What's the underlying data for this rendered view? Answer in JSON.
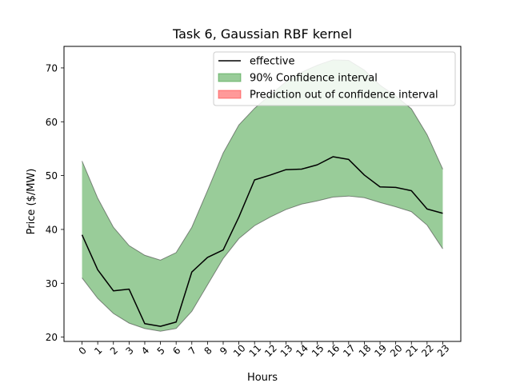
{
  "chart_data": {
    "type": "line",
    "title": "Task 6, Gaussian RBF kernel",
    "xlabel": "Hours",
    "ylabel": "Price ($/MW)",
    "x": [
      0,
      1,
      2,
      3,
      4,
      5,
      6,
      7,
      8,
      9,
      10,
      11,
      12,
      13,
      14,
      15,
      16,
      17,
      18,
      19,
      20,
      21,
      22,
      23
    ],
    "xlim": [
      -1.15,
      24.15
    ],
    "ylim": [
      19.2,
      74.0
    ],
    "yticks": [
      20,
      30,
      40,
      50,
      60,
      70
    ],
    "series": [
      {
        "name": "effective",
        "values": [
          39.0,
          32.5,
          28.6,
          28.9,
          22.5,
          22.0,
          22.8,
          32.1,
          34.8,
          36.2,
          42.3,
          49.2,
          50.1,
          51.1,
          51.2,
          52.0,
          53.5,
          53.0,
          50.1,
          47.9,
          47.8,
          47.2,
          43.8,
          43.0
        ],
        "color": "#000000"
      }
    ],
    "confidence_band": {
      "name": "90% Confidence interval",
      "lower": [
        31.0,
        27.2,
        24.4,
        22.6,
        21.6,
        21.1,
        21.6,
        24.8,
        29.7,
        34.6,
        38.3,
        40.7,
        42.3,
        43.7,
        44.7,
        45.3,
        46.0,
        46.2,
        45.9,
        45.0,
        44.2,
        43.3,
        40.8,
        36.4
      ],
      "upper": [
        52.7,
        45.8,
        40.4,
        37.0,
        35.2,
        34.3,
        35.7,
        40.4,
        47.2,
        54.2,
        59.4,
        62.5,
        65.0,
        67.4,
        69.2,
        70.5,
        71.5,
        71.4,
        69.6,
        66.8,
        64.8,
        62.4,
        57.6,
        51.2
      ],
      "color": "#008000"
    },
    "legend": {
      "position": "top-right",
      "entries": [
        {
          "label": "effective",
          "kind": "line",
          "color": "#000000"
        },
        {
          "label": "90% Confidence interval",
          "kind": "patch",
          "color": "#008000"
        },
        {
          "label": "Prediction out of confidence interval",
          "kind": "patch",
          "color": "#ff0000"
        }
      ]
    }
  }
}
